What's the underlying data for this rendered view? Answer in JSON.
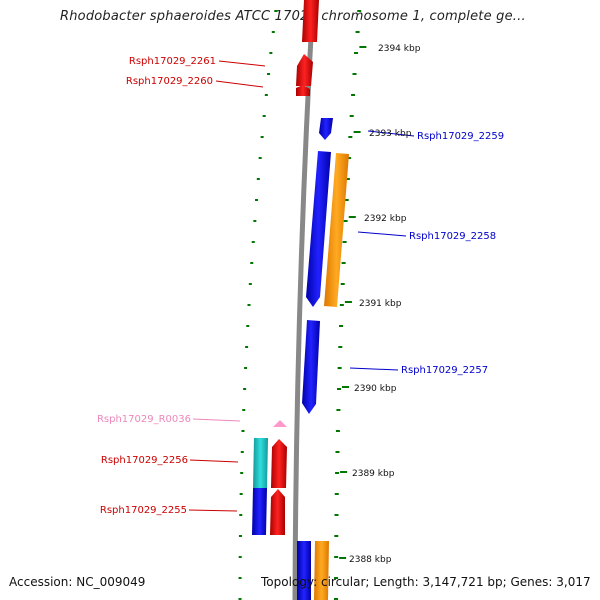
{
  "title": "Rhodobacter sphaeroides ATCC 17029 chromosome 1, complete ge...",
  "footer": {
    "accession": "Accession: NC_009049",
    "topology": "Topology: circular; Length: 3,147,721 bp; Genes: 3,017"
  },
  "ticks": [
    "2394 kbp",
    "2393 kbp",
    "2392 kbp",
    "2391 kbp",
    "2390 kbp",
    "2389 kbp",
    "2388 kbp"
  ],
  "genes": [
    {
      "label": "Rsph17029_2261",
      "color": "#cc0000"
    },
    {
      "label": "Rsph17029_2260",
      "color": "#cc0000"
    },
    {
      "label": "Rsph17029_2259",
      "color": "#0000cc"
    },
    {
      "label": "Rsph17029_2258",
      "color": "#0000cc"
    },
    {
      "label": "Rsph17029_2257",
      "color": "#0000cc"
    },
    {
      "label": "Rsph17029_R0036",
      "color": "#ee88bb"
    },
    {
      "label": "Rsph17029_2256",
      "color": "#cc0000"
    },
    {
      "label": "Rsph17029_2255",
      "color": "#cc0000"
    }
  ],
  "colors": {
    "forward_gene": "#ee1111",
    "reverse_gene": "#1111ee",
    "gc_skew": "#ff9900",
    "cyan_feature": "#22cccc",
    "rna_feature": "#ff99cc",
    "backbone": "#888888",
    "dots": "#007700"
  }
}
